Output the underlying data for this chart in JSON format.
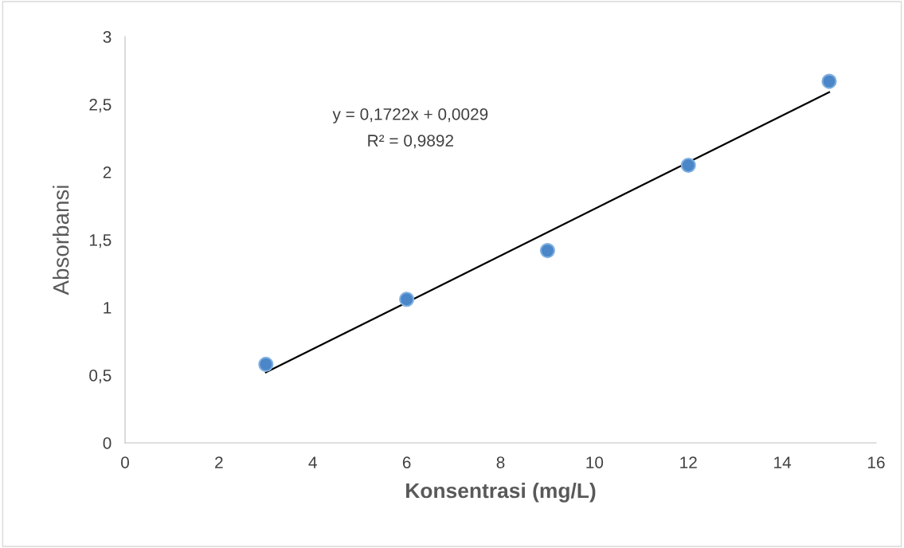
{
  "chart_data": {
    "type": "scatter",
    "xlabel": "Konsentrasi (mg/L)",
    "ylabel": "Absorbansi",
    "series": [
      {
        "type": "scatter",
        "color": "#4a86c8",
        "marker": "circle",
        "x": [
          3,
          6,
          9,
          12,
          15
        ],
        "values": [
          0.58,
          1.06,
          1.42,
          2.05,
          2.67
        ]
      },
      {
        "type": "line",
        "color": "#000000",
        "marker": "none",
        "line_style": "solid",
        "x": [
          3,
          15
        ],
        "values": [
          0.52,
          2.59
        ]
      }
    ],
    "annotations": [
      "y = 0,1722x + 0,0029",
      "R² = 0,9892"
    ],
    "xlim": [
      0,
      16
    ],
    "xticks": [
      0,
      2,
      4,
      6,
      8,
      10,
      12,
      14,
      16
    ],
    "ylim": [
      0,
      3
    ],
    "yticks": [
      0,
      {
        "value": 0.5,
        "label": "0,5"
      },
      1,
      {
        "value": 1.5,
        "label": "1,5"
      },
      2,
      {
        "value": 2.5,
        "label": "2,5"
      },
      3
    ],
    "grid": false,
    "legend": false
  }
}
